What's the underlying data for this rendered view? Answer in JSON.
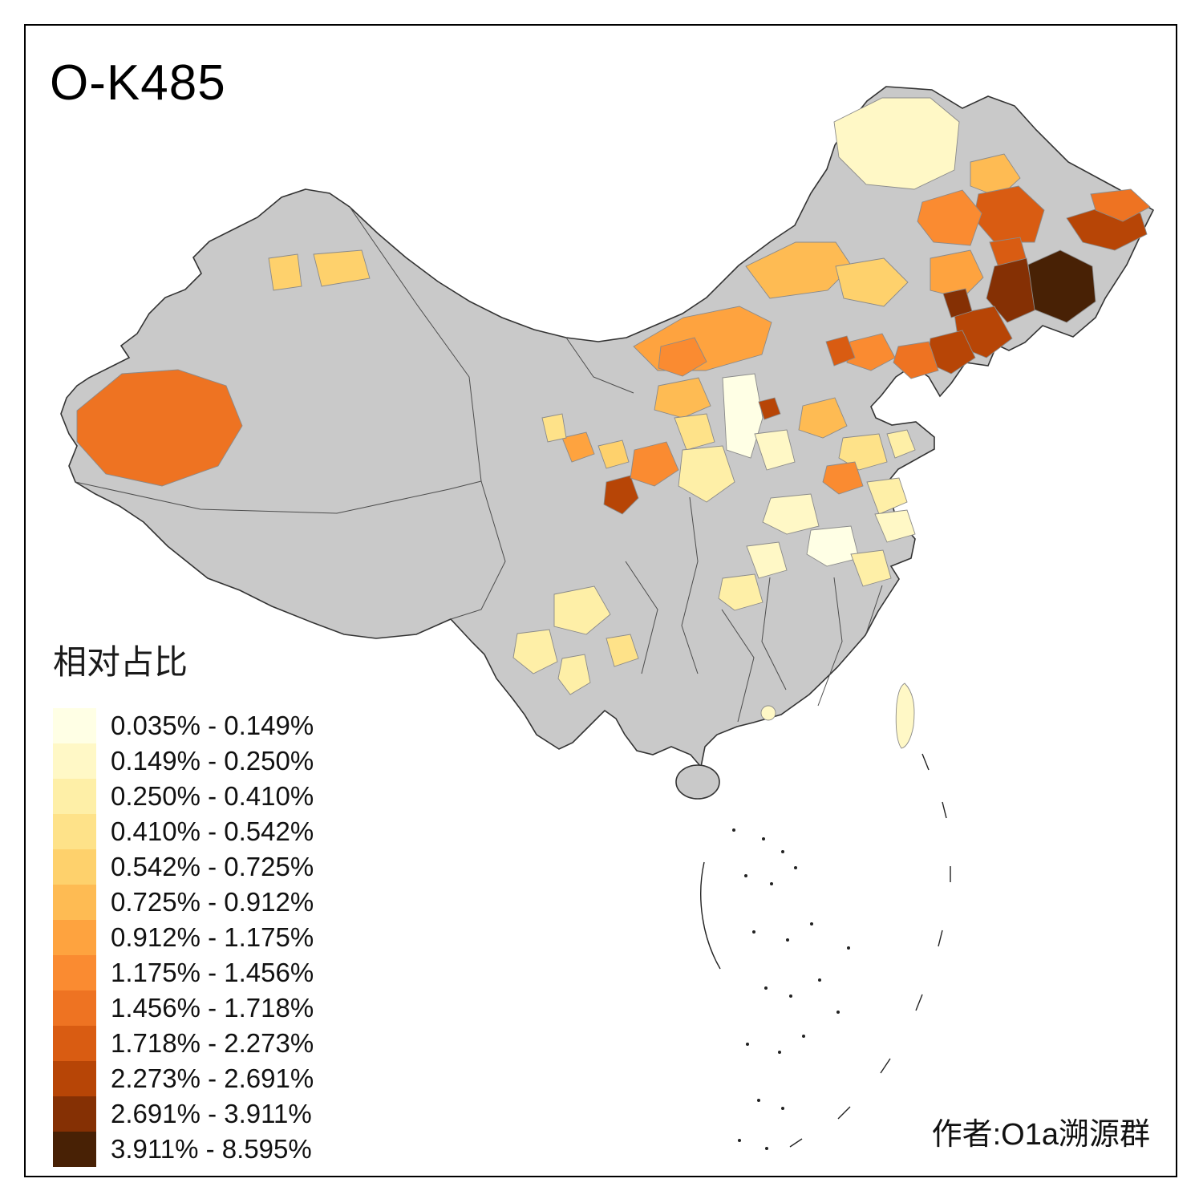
{
  "title": "O-K485",
  "caption": "作者:O1a溯源群",
  "legend": {
    "title": "相对占比",
    "items": [
      {
        "label": "0.035% - 0.149%",
        "color": "#FFFFE5"
      },
      {
        "label": "0.149% - 0.250%",
        "color": "#FFF8C6"
      },
      {
        "label": "0.250% - 0.410%",
        "color": "#FEEFA7"
      },
      {
        "label": "0.410% - 0.542%",
        "color": "#FEE289"
      },
      {
        "label": "0.542% - 0.725%",
        "color": "#FED16C"
      },
      {
        "label": "0.725% - 0.912%",
        "color": "#FEBB53"
      },
      {
        "label": "0.912% - 1.175%",
        "color": "#FEA33F"
      },
      {
        "label": "1.175% - 1.456%",
        "color": "#FA8B31"
      },
      {
        "label": "1.456% - 1.718%",
        "color": "#EE7322"
      },
      {
        "label": "1.718% - 2.273%",
        "color": "#D95C12"
      },
      {
        "label": "2.273% - 2.691%",
        "color": "#B74506"
      },
      {
        "label": "2.691% - 3.911%",
        "color": "#853004"
      },
      {
        "label": "3.911% - 8.595%",
        "color": "#482105"
      }
    ]
  },
  "map": {
    "no_data_color": "#C9C9C9",
    "border_color": "#333333",
    "background": "#FFFFFF",
    "region_kind": "china-prefecture-choropleth"
  }
}
